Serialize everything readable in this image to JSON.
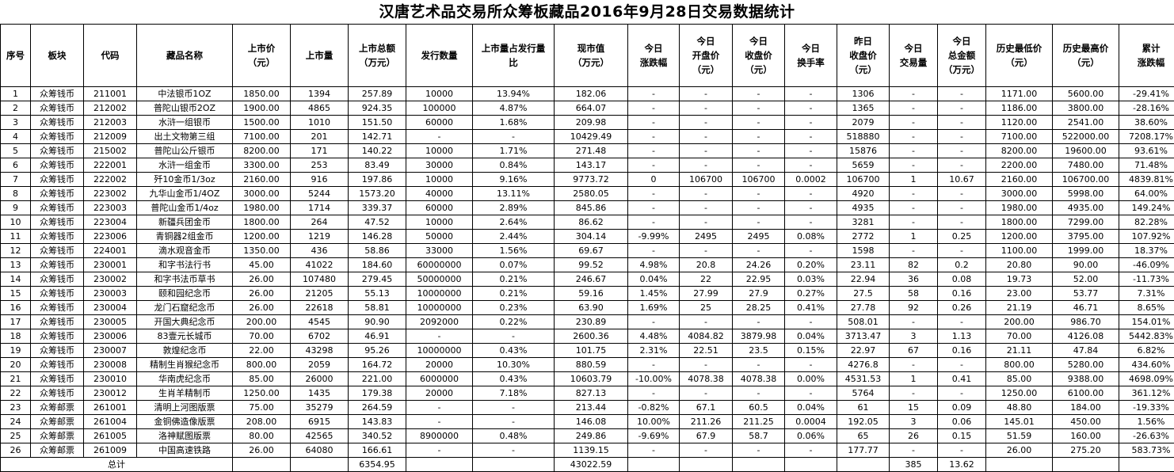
{
  "title": "汉唐艺术品交易所众筹板藏品2016年9月28日交易数据统计",
  "headers": [
    [
      "序号"
    ],
    [
      "板块"
    ],
    [
      "代码"
    ],
    [
      "藏品名称"
    ],
    [
      "上市价",
      "（元）"
    ],
    [
      "上市量"
    ],
    [
      "上市总额",
      "（万元）"
    ],
    [
      "发行数量"
    ],
    [
      "上市量占发行量",
      "比"
    ],
    [
      "现市值",
      "（万元）"
    ],
    [
      "今日",
      "涨跌幅"
    ],
    [
      "今日",
      "开盘价",
      "（元）"
    ],
    [
      "今日",
      "收盘价",
      "（元）"
    ],
    [
      "今日",
      "换手率"
    ],
    [
      "昨日",
      "收盘价",
      "（元）"
    ],
    [
      "今日",
      "交易量"
    ],
    [
      "今日",
      "总金额",
      "（万元）"
    ],
    [
      "历史最低价",
      "（元）"
    ],
    [
      "历史最高价",
      "（元）"
    ],
    [
      "累计",
      "涨跌幅"
    ]
  ],
  "rows": [
    [
      "1",
      "众筹钱币",
      "211001",
      "中法银币1OZ",
      "1850.00",
      "1394",
      "257.89",
      "10000",
      "13.94%",
      "182.06",
      "-",
      "-",
      "-",
      "-",
      "1306",
      "-",
      "-",
      "1171.00",
      "5600.00",
      "-29.41%"
    ],
    [
      "2",
      "众筹钱币",
      "212002",
      "普陀山银币2OZ",
      "1900.00",
      "4865",
      "924.35",
      "100000",
      "4.87%",
      "664.07",
      "-",
      "-",
      "-",
      "-",
      "1365",
      "-",
      "-",
      "1186.00",
      "3800.00",
      "-28.16%"
    ],
    [
      "3",
      "众筹钱币",
      "212003",
      "水浒一组银币",
      "1500.00",
      "1010",
      "151.50",
      "60000",
      "1.68%",
      "209.98",
      "-",
      "-",
      "-",
      "-",
      "2079",
      "-",
      "-",
      "1120.00",
      "2541.00",
      "38.60%"
    ],
    [
      "4",
      "众筹钱币",
      "212009",
      "出土文物第三组",
      "7100.00",
      "201",
      "142.71",
      "-",
      "-",
      "10429.49",
      "-",
      "-",
      "-",
      "-",
      "518880",
      "-",
      "-",
      "7100.00",
      "522000.00",
      "7208.17%"
    ],
    [
      "5",
      "众筹钱币",
      "215002",
      "普陀山公斤银币",
      "8200.00",
      "171",
      "140.22",
      "10000",
      "1.71%",
      "271.48",
      "-",
      "-",
      "-",
      "-",
      "15876",
      "-",
      "-",
      "8200.00",
      "19600.00",
      "93.61%"
    ],
    [
      "6",
      "众筹钱币",
      "222001",
      "水浒一组金币",
      "3300.00",
      "253",
      "83.49",
      "30000",
      "0.84%",
      "143.17",
      "-",
      "-",
      "-",
      "-",
      "5659",
      "-",
      "-",
      "2200.00",
      "7480.00",
      "71.48%"
    ],
    [
      "7",
      "众筹钱币",
      "222002",
      "歼10金币1/3oz",
      "2160.00",
      "916",
      "197.86",
      "10000",
      "9.16%",
      "9773.72",
      "0",
      "106700",
      "106700",
      "0.0002",
      "106700",
      "1",
      "10.67",
      "2160.00",
      "106700.00",
      "4839.81%"
    ],
    [
      "8",
      "众筹钱币",
      "223002",
      "九华山金币1/4OZ",
      "3000.00",
      "5244",
      "1573.20",
      "40000",
      "13.11%",
      "2580.05",
      "-",
      "-",
      "-",
      "-",
      "4920",
      "-",
      "-",
      "3000.00",
      "5998.00",
      "64.00%"
    ],
    [
      "9",
      "众筹钱币",
      "223003",
      "普陀山金币1/4oz",
      "1980.00",
      "1714",
      "339.37",
      "60000",
      "2.89%",
      "845.86",
      "-",
      "-",
      "-",
      "-",
      "4935",
      "-",
      "-",
      "1980.00",
      "4935.00",
      "149.24%"
    ],
    [
      "10",
      "众筹钱币",
      "223004",
      "新疆兵团金币",
      "1800.00",
      "264",
      "47.52",
      "10000",
      "2.64%",
      "86.62",
      "-",
      "-",
      "-",
      "-",
      "3281",
      "-",
      "-",
      "1800.00",
      "7299.00",
      "82.28%"
    ],
    [
      "11",
      "众筹钱币",
      "223006",
      "青铜器2组金币",
      "1200.00",
      "1219",
      "146.28",
      "50000",
      "2.44%",
      "304.14",
      "-9.99%",
      "2495",
      "2495",
      "0.08%",
      "2772",
      "1",
      "0.25",
      "1200.00",
      "3795.00",
      "107.92%"
    ],
    [
      "12",
      "众筹钱币",
      "224001",
      "滴水观音金币",
      "1350.00",
      "436",
      "58.86",
      "33000",
      "1.56%",
      "69.67",
      "-",
      "-",
      "-",
      "-",
      "1598",
      "-",
      "-",
      "1100.00",
      "1999.00",
      "18.37%"
    ],
    [
      "13",
      "众筹钱币",
      "230001",
      "和字书法行书",
      "45.00",
      "41022",
      "184.60",
      "60000000",
      "0.07%",
      "99.52",
      "4.98%",
      "20.8",
      "24.26",
      "0.20%",
      "23.11",
      "82",
      "0.2",
      "20.80",
      "90.00",
      "-46.09%"
    ],
    [
      "14",
      "众筹钱币",
      "230002",
      "和字书法币草书",
      "26.00",
      "107480",
      "279.45",
      "50000000",
      "0.21%",
      "246.67",
      "0.04%",
      "22",
      "22.95",
      "0.03%",
      "22.94",
      "36",
      "0.08",
      "19.73",
      "52.00",
      "-11.73%"
    ],
    [
      "15",
      "众筹钱币",
      "230003",
      "颐和园纪念币",
      "26.00",
      "21205",
      "55.13",
      "10000000",
      "0.21%",
      "59.16",
      "1.45%",
      "27.99",
      "27.9",
      "0.27%",
      "27.5",
      "58",
      "0.16",
      "23.00",
      "53.77",
      "7.31%"
    ],
    [
      "16",
      "众筹钱币",
      "230004",
      "龙门石窟纪念币",
      "26.00",
      "22618",
      "58.81",
      "10000000",
      "0.23%",
      "63.90",
      "1.69%",
      "25",
      "28.25",
      "0.41%",
      "27.78",
      "92",
      "0.26",
      "21.19",
      "46.71",
      "8.65%"
    ],
    [
      "17",
      "众筹钱币",
      "230005",
      "开国大典纪念币",
      "200.00",
      "4545",
      "90.90",
      "2092000",
      "0.22%",
      "230.89",
      "-",
      "-",
      "-",
      "-",
      "508.01",
      "-",
      "-",
      "200.00",
      "986.70",
      "154.01%"
    ],
    [
      "18",
      "众筹钱币",
      "230006",
      "83壹元长城币",
      "70.00",
      "6702",
      "46.91",
      "-",
      "-",
      "2600.36",
      "4.48%",
      "4084.82",
      "3879.98",
      "0.04%",
      "3713.47",
      "3",
      "1.13",
      "70.00",
      "4126.08",
      "5442.83%"
    ],
    [
      "19",
      "众筹钱币",
      "230007",
      "敦煌纪念币",
      "22.00",
      "43298",
      "95.26",
      "10000000",
      "0.43%",
      "101.75",
      "2.31%",
      "22.51",
      "23.5",
      "0.15%",
      "22.97",
      "67",
      "0.16",
      "21.11",
      "47.84",
      "6.82%"
    ],
    [
      "20",
      "众筹钱币",
      "230008",
      "精制生肖猴纪念币",
      "800.00",
      "2059",
      "164.72",
      "20000",
      "10.30%",
      "880.59",
      "-",
      "-",
      "-",
      "-",
      "4276.8",
      "-",
      "-",
      "800.00",
      "5280.00",
      "434.60%"
    ],
    [
      "21",
      "众筹钱币",
      "230010",
      "华南虎纪念币",
      "85.00",
      "26000",
      "221.00",
      "6000000",
      "0.43%",
      "10603.79",
      "-10.00%",
      "4078.38",
      "4078.38",
      "0.00%",
      "4531.53",
      "1",
      "0.41",
      "85.00",
      "9388.00",
      "4698.09%"
    ],
    [
      "22",
      "众筹钱币",
      "230012",
      "生肖羊精制币",
      "1250.00",
      "1435",
      "179.38",
      "20000",
      "7.18%",
      "827.13",
      "-",
      "-",
      "-",
      "-",
      "5764",
      "-",
      "-",
      "1250.00",
      "6100.00",
      "361.12%"
    ],
    [
      "23",
      "众筹邮票",
      "261001",
      "清明上河图版票",
      "75.00",
      "35279",
      "264.59",
      "-",
      "-",
      "213.44",
      "-0.82%",
      "67.1",
      "60.5",
      "0.04%",
      "61",
      "15",
      "0.09",
      "48.80",
      "184.00",
      "-19.33%"
    ],
    [
      "24",
      "众筹邮票",
      "261004",
      "金铜佛造像版票",
      "208.00",
      "6915",
      "143.83",
      "-",
      "-",
      "146.08",
      "10.00%",
      "211.26",
      "211.25",
      "0.0004",
      "192.05",
      "3",
      "0.06",
      "145.01",
      "450.00",
      "1.56%"
    ],
    [
      "25",
      "众筹邮票",
      "261005",
      "洛神赋图版票",
      "80.00",
      "42565",
      "340.52",
      "8900000",
      "0.48%",
      "249.86",
      "-9.69%",
      "67.9",
      "58.7",
      "0.06%",
      "65",
      "26",
      "0.15",
      "51.59",
      "160.00",
      "-26.63%"
    ],
    [
      "26",
      "众筹邮票",
      "261009",
      "中国高速铁路",
      "26.00",
      "64080",
      "166.61",
      "-",
      "-",
      "1139.15",
      "-",
      "-",
      "-",
      "-",
      "177.77",
      "-",
      "-",
      "26.00",
      "275.20",
      "583.73%"
    ]
  ],
  "total": {
    "label": "总计",
    "listing_total": "6354.95",
    "market_value": "43022.59",
    "volume": "385",
    "amount": "13.62"
  }
}
